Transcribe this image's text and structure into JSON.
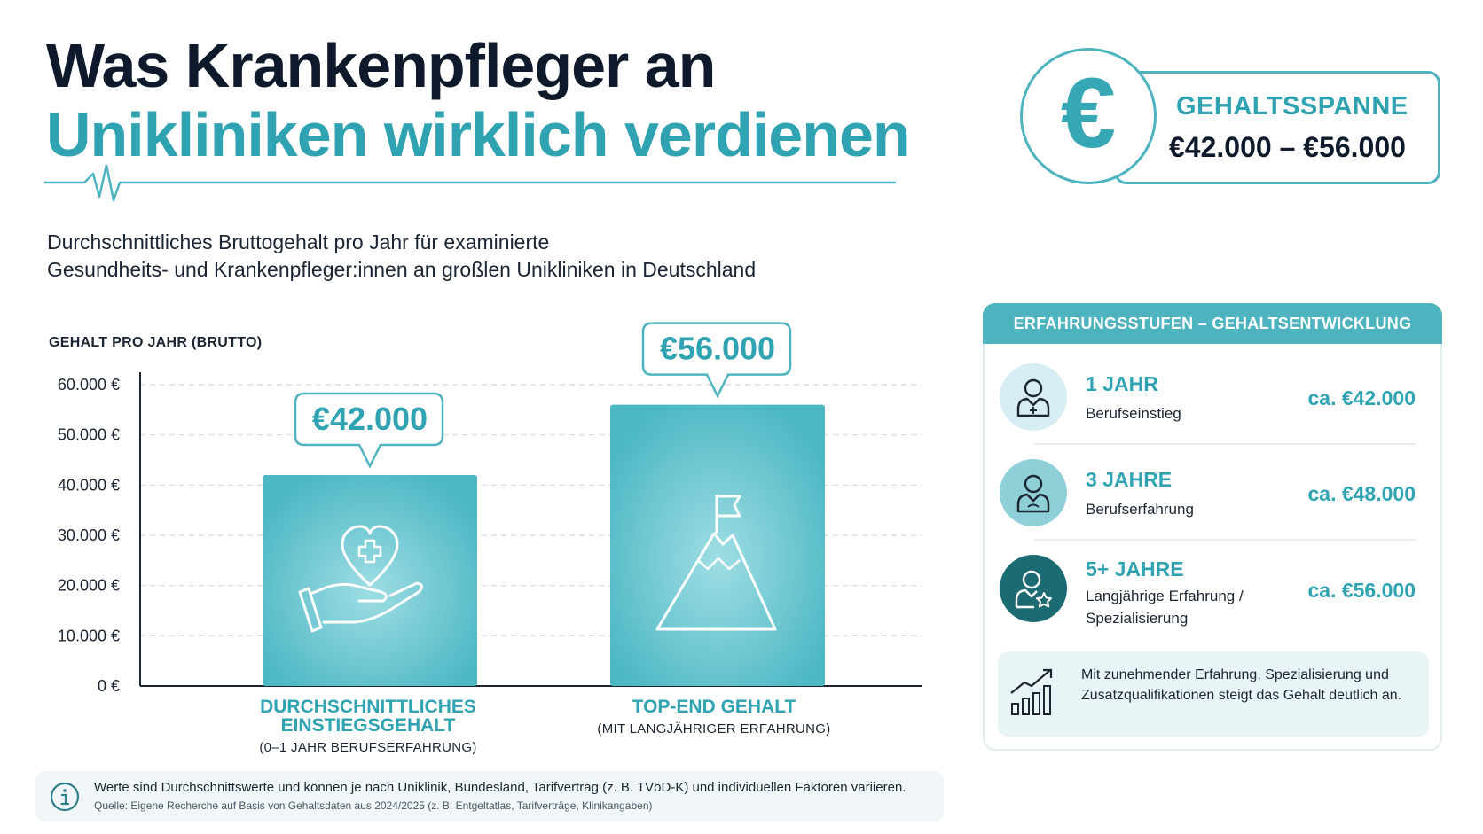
{
  "header": {
    "title_line1": "Was Krankenpfleger an",
    "title_line2": "Unikliniken wirklich verdienen",
    "subtitle_line1": "Durchschnittliches Bruttogehalt pro Jahr für examinierte",
    "subtitle_line2": "Gesundheits- und Krankenpfleger:innen an großlen Unikliniken in Deutschland"
  },
  "range_badge": {
    "icon": "euro-icon",
    "label": "GEHALTSSPANNE",
    "value": "€42.000 – €56.000"
  },
  "chart_data": {
    "type": "bar",
    "ylabel": "GEHALT PRO JAHR (BRUTTO)",
    "ylim": [
      0,
      60000
    ],
    "yticks": [
      0,
      10000,
      20000,
      30000,
      40000,
      50000,
      60000
    ],
    "ytick_labels": [
      "0 €",
      "10.000 €",
      "20.000 €",
      "30.000 €",
      "40.000 €",
      "50.000 €",
      "60.000 €"
    ],
    "grid": true,
    "categories": [
      "DURCHSCHNITTLICHES EINSTIEGSGEHALT",
      "TOP-END GEHALT"
    ],
    "category_lines": [
      [
        "DURCHSCHNITTLICHES",
        "EINSTIEGSGEHALT"
      ],
      [
        "TOP-END GEHALT"
      ]
    ],
    "category_sub": [
      "(0–1 JAHR BERUFSERFAHRUNG)",
      "(MIT LANGJÄHRIGER ERFAHRUNG)"
    ],
    "values": [
      42000,
      56000
    ],
    "data_labels": [
      "€42.000",
      "€56.000"
    ],
    "bar_icons": [
      "heart-hand-icon",
      "mountain-flag-icon"
    ],
    "bar_color": "#4db8c4"
  },
  "note": {
    "icon": "info-icon",
    "text": "Werte sind Durchschnittswerte und können je nach Uniklinik, Bundesland, Tarifvertrag (z. B. TVöD-K) und individuellen Faktoren variieren.",
    "source": "Quelle: Eigene Recherche auf Basis von Gehaltsdaten aus 2024/2025 (z. B. Entgeltatlas, Tarifverträge, Klinikangaben)"
  },
  "stages": {
    "heading": "ERFAHRUNGSSTUFEN – GEHALTSENTWICKLUNG",
    "items": [
      {
        "title": "1 JAHR",
        "desc_line1": "Berufseinstieg",
        "desc_line2": "",
        "value": "ca. €42.000",
        "icon": "nurse-icon",
        "icon_bg": "#d6eef3"
      },
      {
        "title": "3 JAHRE",
        "desc_line1": "Berufserfahrung",
        "desc_line2": "",
        "value": "ca. €48.000",
        "icon": "nurse-icon",
        "icon_bg": "#8fd0d8"
      },
      {
        "title": "5+ JAHRE",
        "desc_line1": "Langjährige Erfahrung /",
        "desc_line2": "Spezialisierung",
        "value": "ca. €56.000",
        "icon": "nurse-star-icon",
        "icon_bg": "#1c6a72"
      }
    ],
    "trend_icon": "growth-chart-icon",
    "trend_text": "Mit zunehmender Erfahrung, Spezialisierung und Zusatzqualifikationen steigt das Gehalt deutlich an."
  },
  "colors": {
    "accent": "#2fa3b1",
    "dark": "#0e1a2b",
    "bar": "#4db8c4"
  }
}
